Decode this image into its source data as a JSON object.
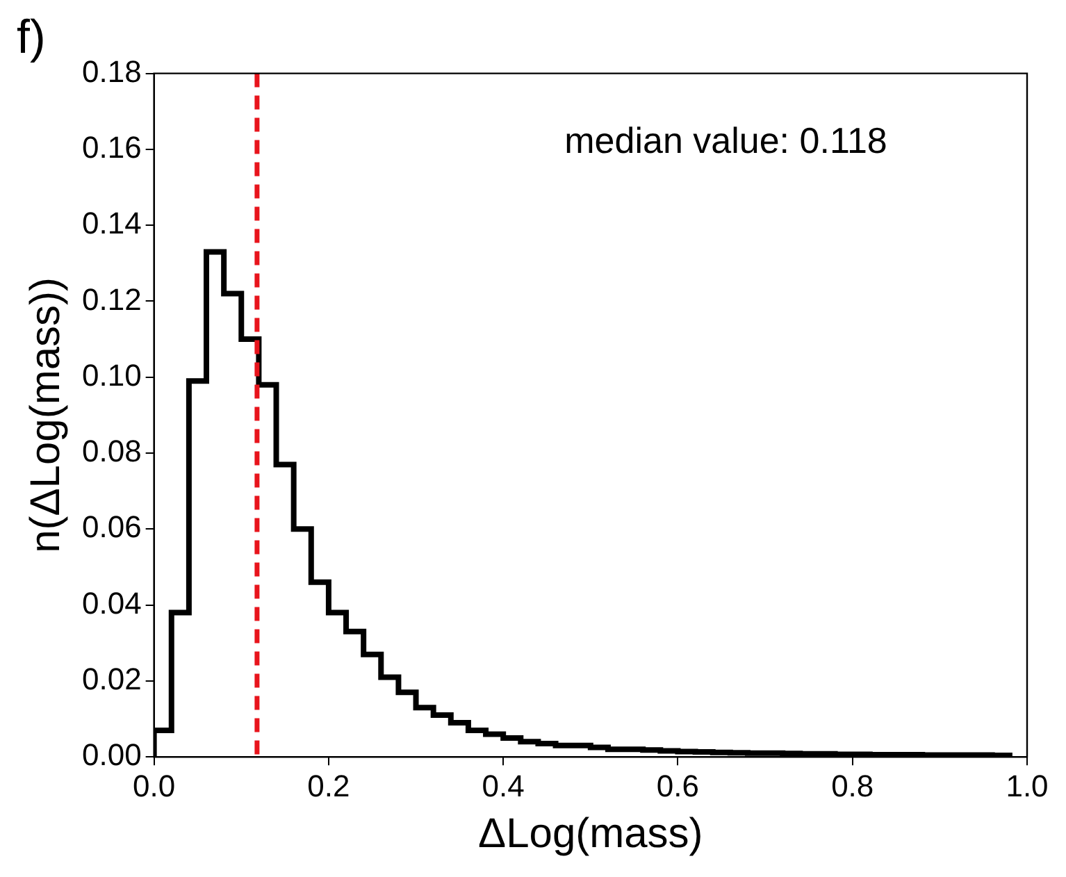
{
  "chart_data": {
    "type": "histogram",
    "title": "f)",
    "xlabel": "ΔLog(mass)",
    "ylabel": "n(ΔLog(mass))",
    "bins": [
      0,
      0.02,
      0.04,
      0.06,
      0.08,
      0.1,
      0.12,
      0.14,
      0.16,
      0.18,
      0.2,
      0.22,
      0.24,
      0.26,
      0.28,
      0.3,
      0.32,
      0.34,
      0.36,
      0.38,
      0.4,
      0.42,
      0.44,
      0.46,
      0.48,
      0.5,
      0.52,
      0.54,
      0.56,
      0.58,
      0.6,
      0.62,
      0.64,
      0.66,
      0.68,
      0.7,
      0.72,
      0.74,
      0.76,
      0.78,
      0.8,
      0.82,
      0.84,
      0.86,
      0.88,
      0.9,
      0.92,
      0.94,
      0.96,
      0.98
    ],
    "values": [
      0.007,
      0.038,
      0.099,
      0.133,
      0.122,
      0.11,
      0.098,
      0.077,
      0.06,
      0.046,
      0.038,
      0.033,
      0.027,
      0.021,
      0.017,
      0.013,
      0.011,
      0.009,
      0.007,
      0.006,
      0.005,
      0.004,
      0.0035,
      0.003,
      0.003,
      0.0025,
      0.002,
      0.002,
      0.0018,
      0.0016,
      0.0014,
      0.0013,
      0.0012,
      0.0011,
      0.001,
      0.001,
      0.0009,
      0.0008,
      0.0008,
      0.0007,
      0.0007,
      0.0006,
      0.0006,
      0.0006,
      0.0005,
      0.0005,
      0.0005,
      0.0005,
      0.0004
    ],
    "color": "#000000",
    "xlim": [
      0,
      1
    ],
    "xticks": [
      {
        "value": 0,
        "label": "0.0"
      },
      {
        "value": 0.2,
        "label": "0.2"
      },
      {
        "value": 0.4,
        "label": "0.4"
      },
      {
        "value": 0.6,
        "label": "0.6"
      },
      {
        "value": 0.8,
        "label": "0.8"
      },
      {
        "value": 1,
        "label": "1.0"
      }
    ],
    "ylim": [
      0,
      0.18
    ],
    "yticks": [
      {
        "value": 0,
        "label": "0.00"
      },
      {
        "value": 0.02,
        "label": "0.02"
      },
      {
        "value": 0.04,
        "label": "0.04"
      },
      {
        "value": 0.06,
        "label": "0.06"
      },
      {
        "value": 0.08,
        "label": "0.08"
      },
      {
        "value": 0.1,
        "label": "0.10"
      },
      {
        "value": 0.12,
        "label": "0.12"
      },
      {
        "value": 0.14,
        "label": "0.14"
      },
      {
        "value": 0.16,
        "label": "0.16"
      },
      {
        "value": 0.18,
        "label": "0.18"
      }
    ],
    "ref_lines": [
      {
        "axis": "x",
        "value": 0.118,
        "color": "#e8141c",
        "line_style": "dashed"
      }
    ],
    "annotations": [
      "median value: 0.118"
    ],
    "grid": false,
    "legend": false
  }
}
